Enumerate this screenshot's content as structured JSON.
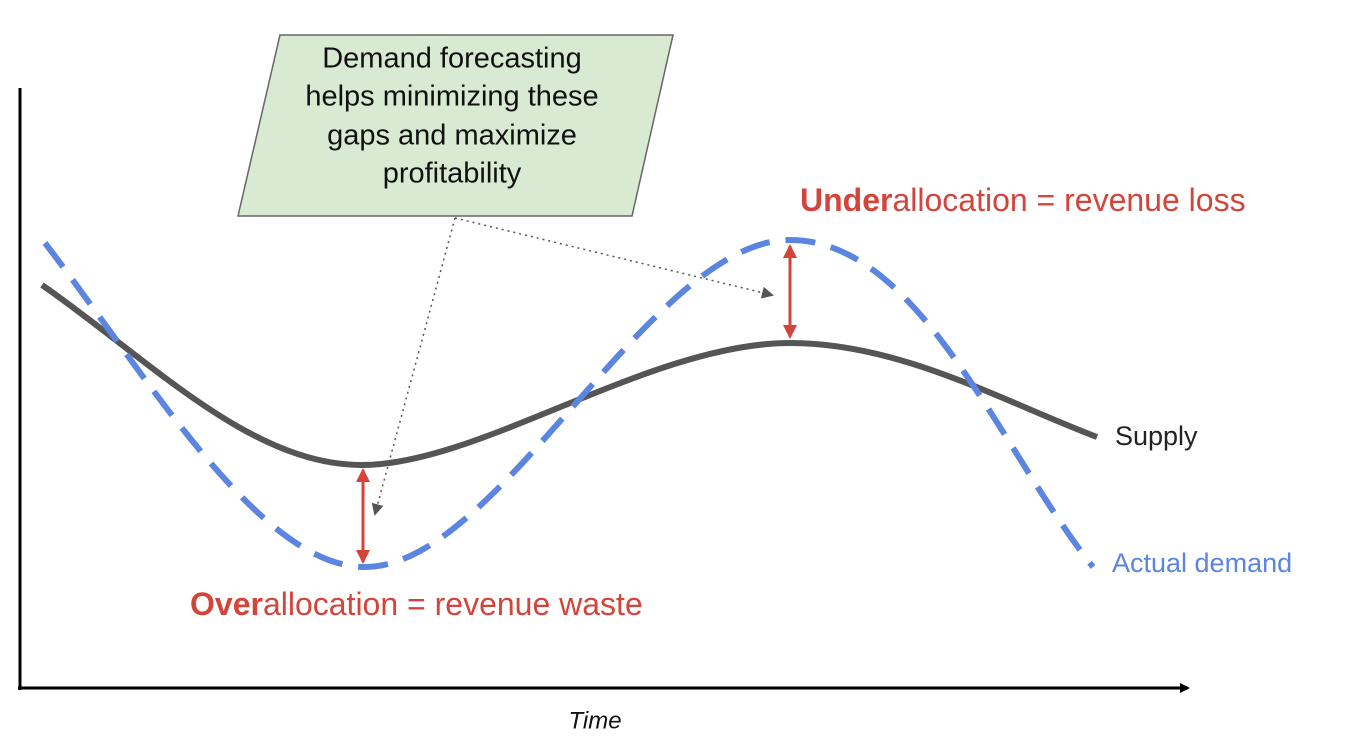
{
  "callout": {
    "lines": [
      "Demand forecasting",
      "helps minimizing these",
      "gaps and maximize",
      "profitability"
    ]
  },
  "under_label": {
    "emphasis": "Under",
    "rest": "allocation = revenue loss"
  },
  "over_label": {
    "emphasis": "Over",
    "rest": "allocation = revenue waste"
  },
  "series_labels": {
    "supply": "Supply",
    "demand": "Actual demand"
  },
  "x_axis": {
    "label": "Time"
  }
}
